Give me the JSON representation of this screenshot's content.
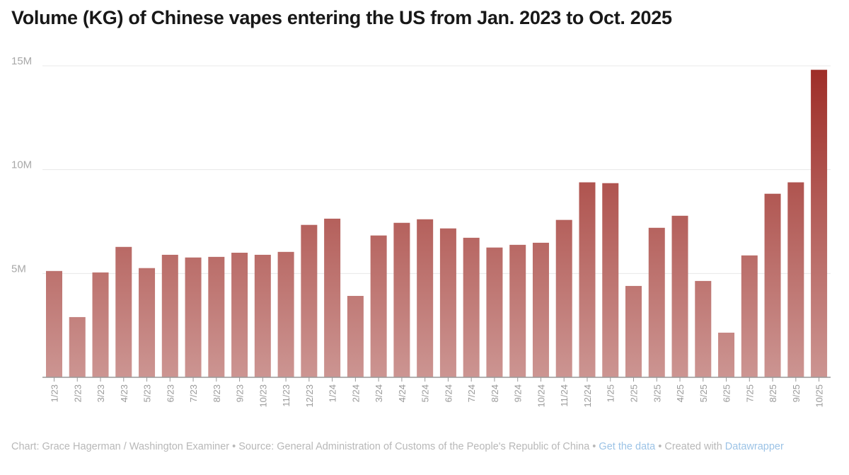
{
  "chart_data": {
    "type": "bar",
    "title": "Volume (KG) of Chinese vapes entering the US from Jan. 2023 to Oct. 2025",
    "xlabel": "",
    "ylabel": "",
    "ylim": [
      0,
      15000000
    ],
    "yticks": [
      {
        "value": 5000000,
        "label": "5M"
      },
      {
        "value": 10000000,
        "label": "10M"
      },
      {
        "value": 15000000,
        "label": "15M"
      }
    ],
    "grid": true,
    "categories": [
      "1/23",
      "2/23",
      "3/23",
      "4/23",
      "5/23",
      "6/23",
      "7/23",
      "8/23",
      "9/23",
      "10/23",
      "11/23",
      "12/23",
      "1/24",
      "2/24",
      "3/24",
      "4/24",
      "5/24",
      "6/24",
      "7/24",
      "8/24",
      "9/24",
      "10/24",
      "11/24",
      "12/24",
      "1/25",
      "2/25",
      "3/25",
      "4/25",
      "5/25",
      "6/25",
      "7/25",
      "8/25",
      "9/25",
      "10/25"
    ],
    "values": [
      5120000,
      2900000,
      5050000,
      6280000,
      5260000,
      5900000,
      5770000,
      5800000,
      6000000,
      5900000,
      6040000,
      7340000,
      7640000,
      3920000,
      6830000,
      7440000,
      7610000,
      7170000,
      6720000,
      6250000,
      6380000,
      6480000,
      7580000,
      9390000,
      9350000,
      4400000,
      7200000,
      7780000,
      4640000,
      2150000,
      5870000,
      8840000,
      9390000,
      14810000
    ],
    "colors": {
      "high": "#9e2d27",
      "low": "#cc9592",
      "grid": "#e8e8e8",
      "axis": "#999999",
      "tick_text": "#9a9a9a"
    }
  },
  "footer": {
    "credit": "Chart: Grace Hagerman / Washington Examiner • Source: General Administration of Customs of the People's Republic of China • ",
    "get_data": "Get the data",
    "created": " • Created with ",
    "datawrapper": "Datawrapper"
  }
}
